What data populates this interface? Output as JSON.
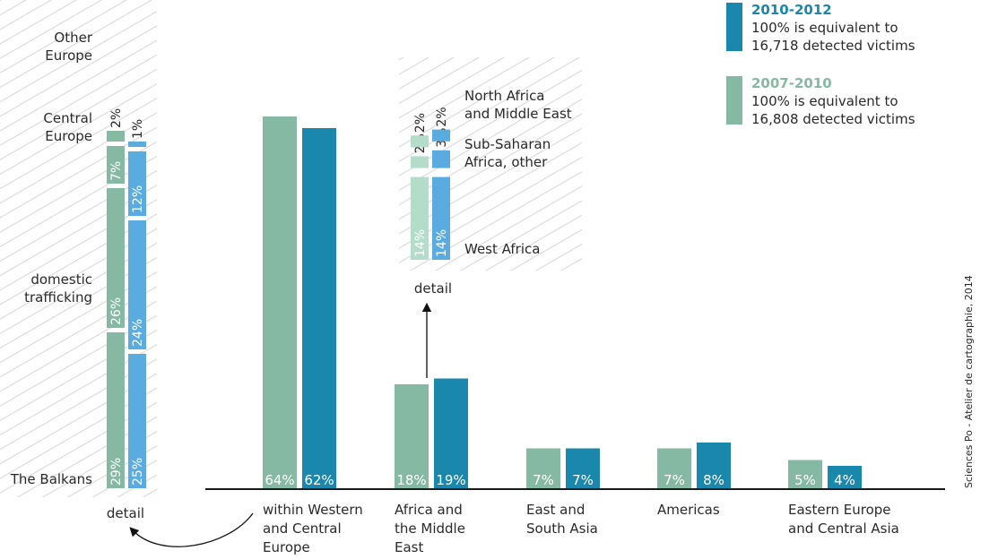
{
  "chart_data": {
    "type": "bar",
    "title": "",
    "xlabel": "",
    "ylabel": "",
    "unit": "%",
    "series": [
      {
        "name": "2007-2010",
        "color": "#86b9a4",
        "values": [
          64,
          18,
          7,
          7,
          5
        ]
      },
      {
        "name": "2010-2012",
        "color": "#1a87ad",
        "values": [
          62,
          19,
          7,
          8,
          4
        ]
      }
    ],
    "categories": [
      [
        "within Western",
        "and Central",
        "Europe"
      ],
      [
        "Africa and",
        "the Middle",
        "East"
      ],
      [
        "East and",
        "South Asia"
      ],
      [
        "Americas"
      ],
      [
        "Eastern Europe",
        "and Central Asia"
      ]
    ],
    "legend": [
      {
        "year": "2010-2012",
        "color": "#1a87ad",
        "line1": "100% is equivalent to",
        "line2": "16,718 detected victims"
      },
      {
        "year": "2007-2010",
        "color": "#86b9a4",
        "line1": "100% is equivalent to",
        "line2": "16,808 detected victims"
      }
    ],
    "europe_detail": {
      "label": "detail",
      "colors": {
        "2007-2010": "#86b9a4",
        "2010-2012": "#5aace0"
      },
      "rows": [
        {
          "name": [
            "Other",
            "Europe"
          ],
          "v2007": 2,
          "v2010": 1
        },
        {
          "name": [
            "Central",
            "Europe"
          ],
          "v2007": 7,
          "v2010": 12
        },
        {
          "name": [
            "domestic",
            "trafficking"
          ],
          "v2007": 26,
          "v2010": 24
        },
        {
          "name": [
            "The Balkans"
          ],
          "v2007": 29,
          "v2010": 25
        }
      ]
    },
    "africa_detail": {
      "label": "detail",
      "colors": {
        "2007-2010": "#b4dccb",
        "2010-2012": "#5aace0"
      },
      "rows": [
        {
          "name": [
            "North Africa",
            "and Middle East"
          ],
          "v2007": 2,
          "v2010": 2
        },
        {
          "name": [
            "Sub-Saharan",
            "Africa, other"
          ],
          "v2007": 2,
          "v2010": 3
        },
        {
          "name": [
            "West Africa"
          ],
          "v2007": 14,
          "v2010": 14
        }
      ]
    },
    "credit": "Sciences Po - Atelier de cartographie, 2014"
  }
}
